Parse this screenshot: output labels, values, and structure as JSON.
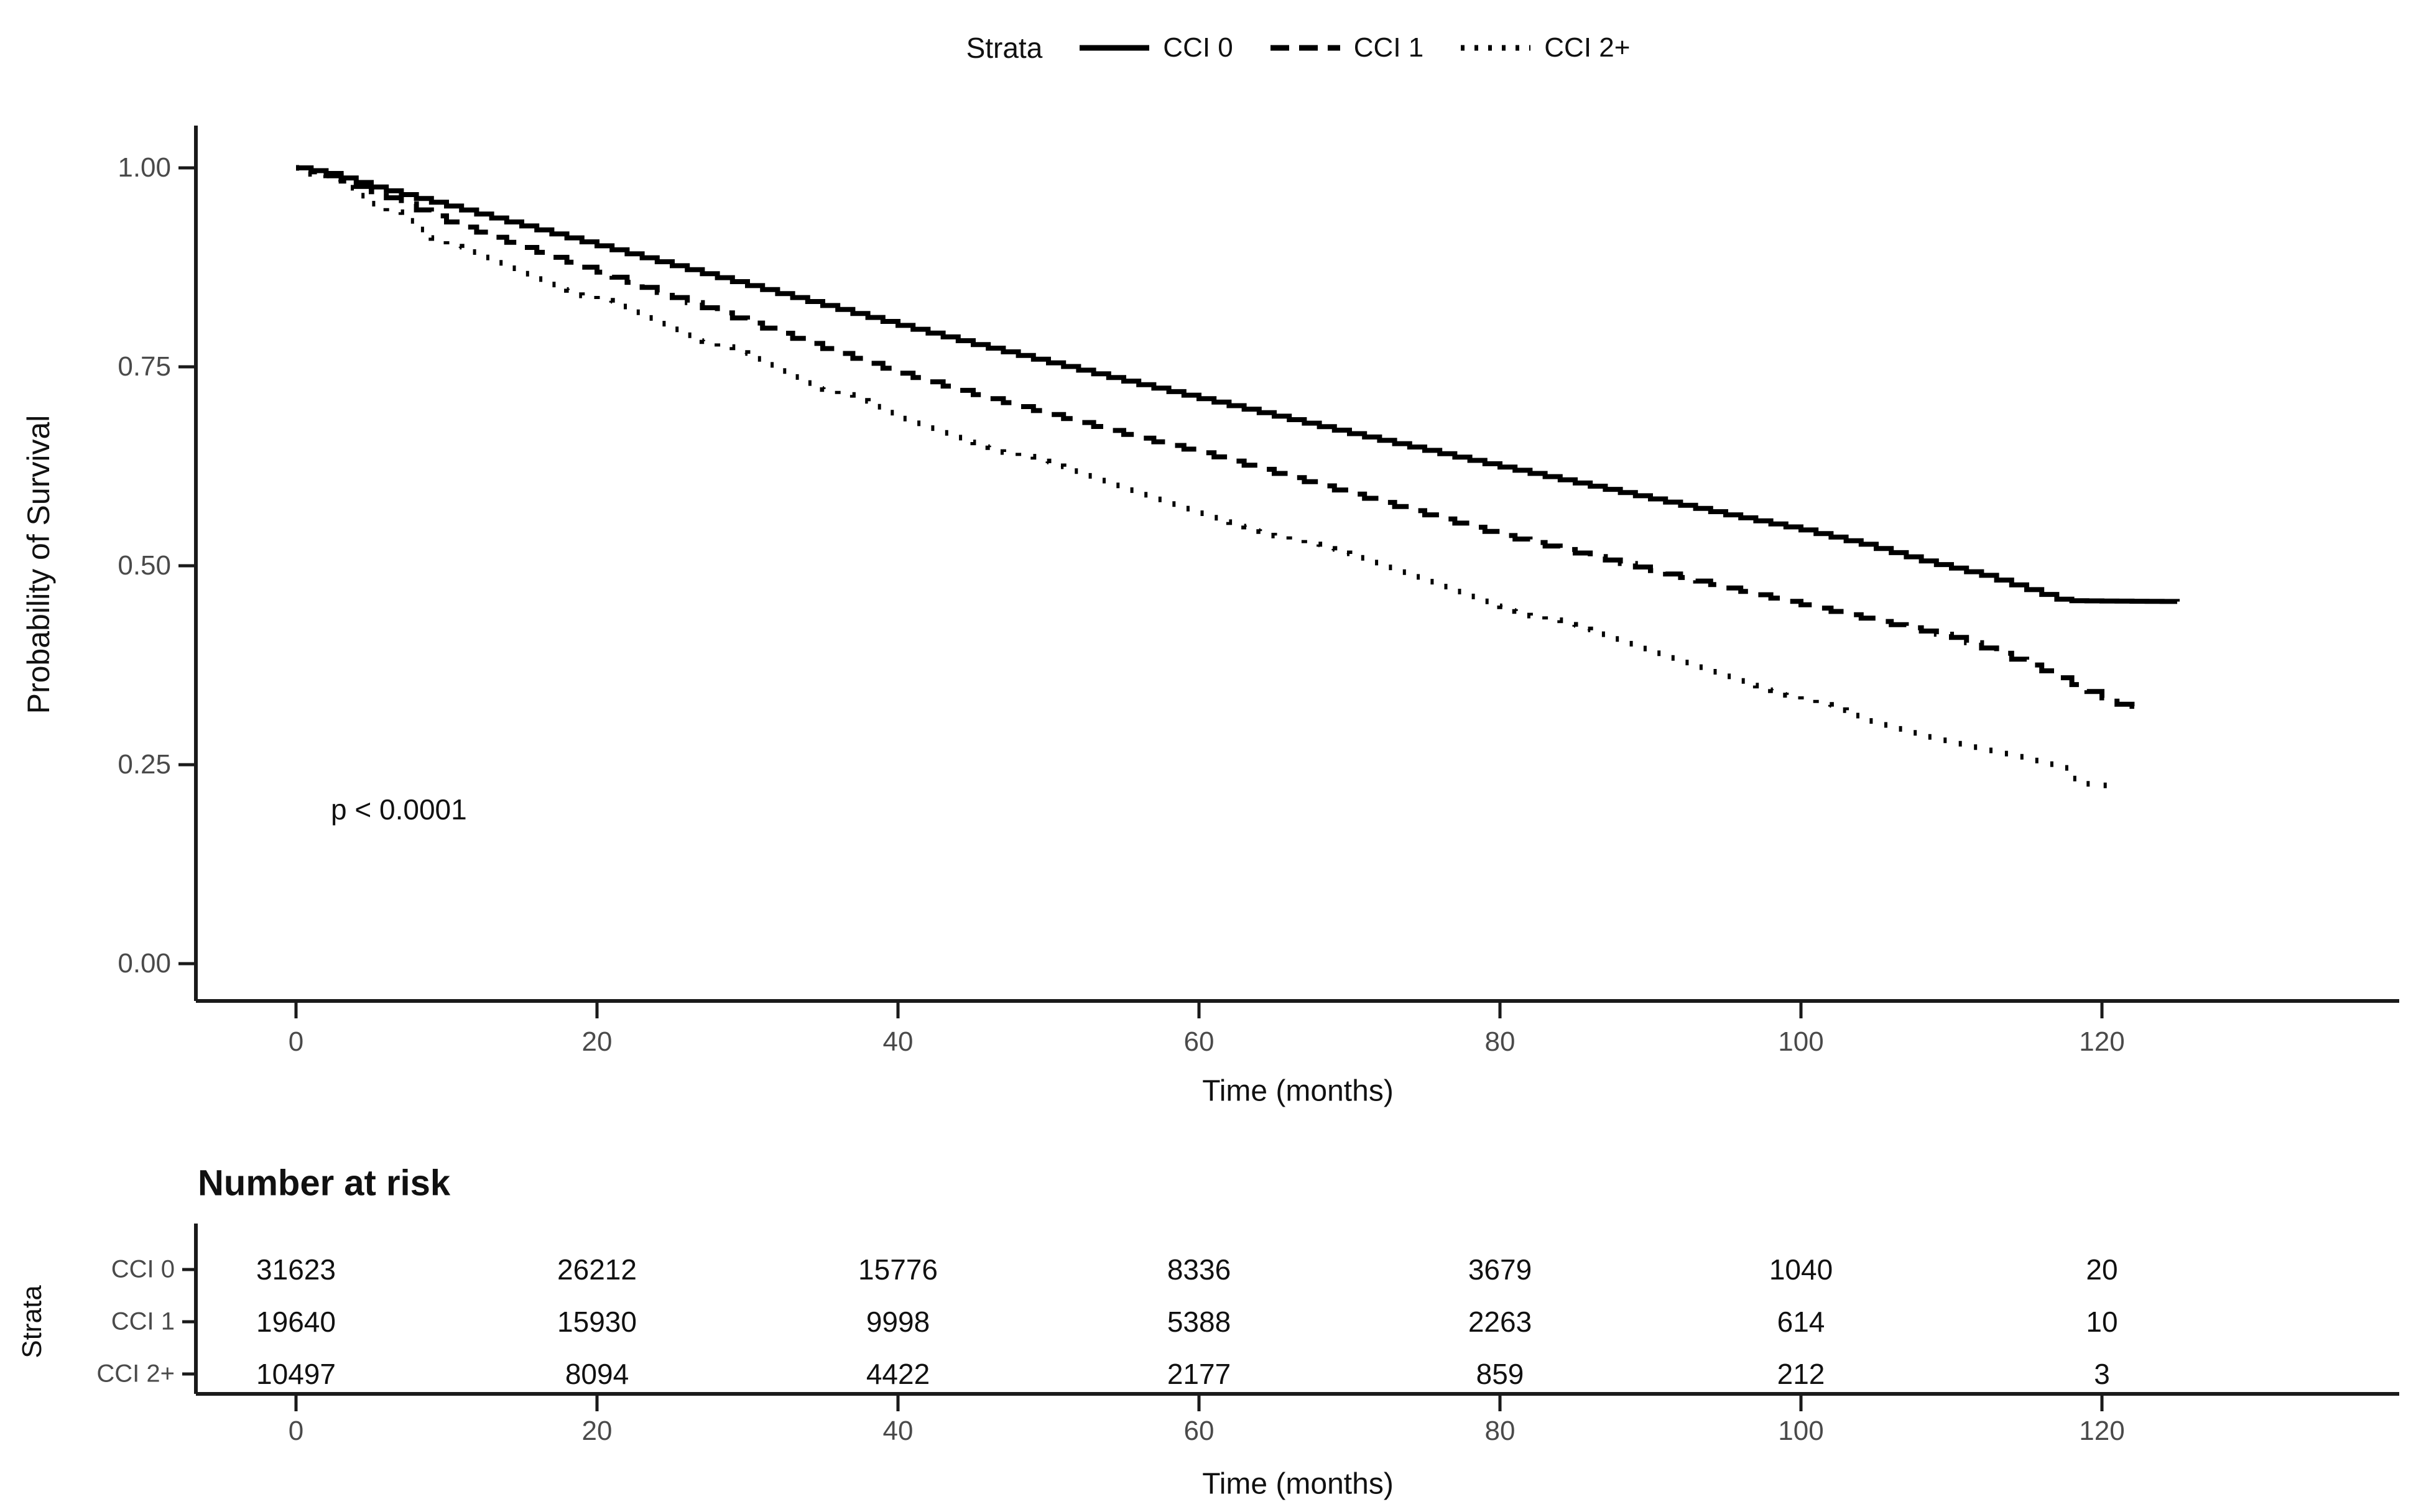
{
  "legend": {
    "title": "Strata",
    "items": [
      {
        "label": "CCI 0",
        "line_style": "solid"
      },
      {
        "label": "CCI 1",
        "line_style": "dashed"
      },
      {
        "label": "CCI 2+",
        "line_style": "dotted"
      }
    ]
  },
  "main_plot": {
    "ylabel": "Probability of Survival",
    "xlabel": "Time (months)",
    "pvalue": "p < 0.0001",
    "y_tick_labels": [
      "1.00",
      "0.75",
      "0.50",
      "0.25",
      "0.00"
    ],
    "x_tick_labels": [
      "0",
      "20",
      "40",
      "60",
      "80",
      "100",
      "120"
    ]
  },
  "risk_table": {
    "title": "Number at risk",
    "axis_label": "Strata",
    "xlabel": "Time (months)",
    "x_tick_labels": [
      "0",
      "20",
      "40",
      "60",
      "80",
      "100",
      "120"
    ],
    "rows": [
      {
        "label": "CCI 0",
        "values": [
          "31623",
          "26212",
          "15776",
          "8336",
          "3679",
          "1040",
          "20"
        ]
      },
      {
        "label": "CCI 1",
        "values": [
          "19640",
          "15930",
          "9998",
          "5388",
          "2263",
          "614",
          "10"
        ]
      },
      {
        "label": "CCI 2+",
        "values": [
          "10497",
          "8094",
          "4422",
          "2177",
          "859",
          "212",
          "3"
        ]
      }
    ]
  },
  "colors": {
    "curve": "#000000",
    "axis_line": "#1a1a1a",
    "tick_text": "#4a4a4a",
    "title_text": "#111111"
  },
  "chart_data": {
    "type": "line",
    "subtype": "kaplan-meier-step",
    "title": "",
    "xlabel": "Time (months)",
    "ylabel": "Probability of Survival",
    "xlim": [
      0,
      130
    ],
    "ylim": [
      0,
      1
    ],
    "x_ticks": [
      0,
      20,
      40,
      60,
      80,
      100,
      120
    ],
    "y_ticks": [
      1.0,
      0.75,
      0.5,
      0.25,
      0.0
    ],
    "grid": false,
    "legend_position": "top",
    "legend_title": "Strata",
    "annotation": "p < 0.0001",
    "series": [
      {
        "name": "CCI 0",
        "line_style": "solid",
        "points": [
          [
            0,
            1.0
          ],
          [
            2,
            0.993
          ],
          [
            5,
            0.976
          ],
          [
            10,
            0.952
          ],
          [
            15,
            0.927
          ],
          [
            20,
            0.902
          ],
          [
            25,
            0.877
          ],
          [
            30,
            0.852
          ],
          [
            35,
            0.827
          ],
          [
            40,
            0.802
          ],
          [
            45,
            0.778
          ],
          [
            50,
            0.755
          ],
          [
            55,
            0.732
          ],
          [
            60,
            0.71
          ],
          [
            65,
            0.688
          ],
          [
            70,
            0.666
          ],
          [
            75,
            0.645
          ],
          [
            80,
            0.624
          ],
          [
            85,
            0.604
          ],
          [
            90,
            0.584
          ],
          [
            95,
            0.564
          ],
          [
            100,
            0.545
          ],
          [
            104,
            0.527
          ],
          [
            108,
            0.506
          ],
          [
            112,
            0.488
          ],
          [
            115,
            0.47
          ],
          [
            117,
            0.458
          ],
          [
            118,
            0.456
          ],
          [
            125,
            0.455
          ]
        ]
      },
      {
        "name": "CCI 1",
        "line_style": "dashed",
        "points": [
          [
            0,
            1.0
          ],
          [
            2,
            0.99
          ],
          [
            5,
            0.97
          ],
          [
            10,
            0.932
          ],
          [
            15,
            0.9
          ],
          [
            20,
            0.869
          ],
          [
            25,
            0.837
          ],
          [
            30,
            0.805
          ],
          [
            35,
            0.773
          ],
          [
            40,
            0.742
          ],
          [
            45,
            0.715
          ],
          [
            50,
            0.69
          ],
          [
            55,
            0.665
          ],
          [
            60,
            0.642
          ],
          [
            65,
            0.616
          ],
          [
            70,
            0.59
          ],
          [
            75,
            0.564
          ],
          [
            80,
            0.538
          ],
          [
            85,
            0.516
          ],
          [
            90,
            0.494
          ],
          [
            95,
            0.472
          ],
          [
            100,
            0.451
          ],
          [
            105,
            0.43
          ],
          [
            110,
            0.41
          ],
          [
            113,
            0.39
          ],
          [
            116,
            0.368
          ],
          [
            119,
            0.342
          ],
          [
            121,
            0.326
          ],
          [
            122.5,
            0.322
          ]
        ]
      },
      {
        "name": "CCI 2+",
        "line_style": "dotted",
        "points": [
          [
            0,
            1.0
          ],
          [
            2,
            0.985
          ],
          [
            5,
            0.955
          ],
          [
            10,
            0.901
          ],
          [
            15,
            0.867
          ],
          [
            20,
            0.833
          ],
          [
            25,
            0.797
          ],
          [
            30,
            0.76
          ],
          [
            35,
            0.722
          ],
          [
            40,
            0.685
          ],
          [
            45,
            0.655
          ],
          [
            50,
            0.625
          ],
          [
            55,
            0.595
          ],
          [
            60,
            0.566
          ],
          [
            65,
            0.538
          ],
          [
            70,
            0.51
          ],
          [
            75,
            0.48
          ],
          [
            80,
            0.449
          ],
          [
            85,
            0.42
          ],
          [
            90,
            0.39
          ],
          [
            95,
            0.361
          ],
          [
            100,
            0.332
          ],
          [
            104,
            0.305
          ],
          [
            108,
            0.285
          ],
          [
            111,
            0.272
          ],
          [
            114,
            0.26
          ],
          [
            117,
            0.246
          ],
          [
            118.5,
            0.226
          ],
          [
            120.5,
            0.222
          ]
        ]
      }
    ],
    "number_at_risk": {
      "times": [
        0,
        20,
        40,
        60,
        80,
        100,
        120
      ],
      "groups": [
        {
          "name": "CCI 0",
          "counts": [
            31623,
            26212,
            15776,
            8336,
            3679,
            1040,
            20
          ]
        },
        {
          "name": "CCI 1",
          "counts": [
            19640,
            15930,
            9998,
            5388,
            2263,
            614,
            10
          ]
        },
        {
          "name": "CCI 2+",
          "counts": [
            10497,
            8094,
            4422,
            2177,
            859,
            212,
            3
          ]
        }
      ]
    }
  }
}
